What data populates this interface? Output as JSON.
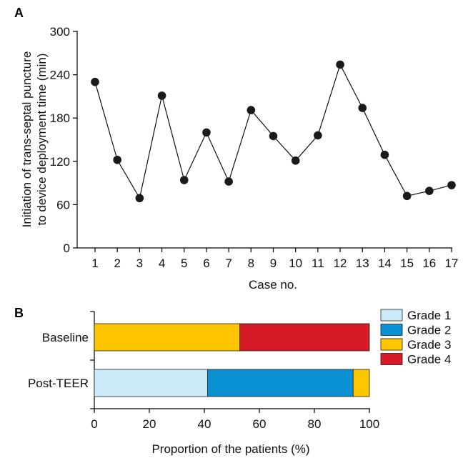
{
  "chart_data": [
    {
      "panel": "A",
      "type": "line",
      "xlabel": "Case no.",
      "ylabel_lines": [
        "Initiation of trans-septal puncture",
        "to device deployment time (min)"
      ],
      "ylim": [
        0,
        300
      ],
      "yticks": [
        0,
        60,
        120,
        180,
        240,
        300
      ],
      "x": [
        1,
        2,
        3,
        4,
        5,
        6,
        7,
        8,
        9,
        10,
        11,
        12,
        13,
        14,
        15,
        16,
        17
      ],
      "series": [
        {
          "values": [
            230,
            122,
            69,
            211,
            94,
            160,
            92,
            191,
            155,
            121,
            156,
            254,
            194,
            129,
            72,
            79,
            87
          ]
        }
      ],
      "grid": false
    },
    {
      "panel": "B",
      "type": "bar",
      "orientation": "horizontal",
      "stacked": true,
      "xlabel": "Proportion of the patients (%)",
      "xlim": [
        0,
        100
      ],
      "xticks": [
        0,
        20,
        40,
        60,
        80,
        100
      ],
      "categories": [
        "Baseline",
        "Post-TEER"
      ],
      "series": [
        {
          "name": "Grade 1",
          "color": "#cce9f7",
          "values": [
            0,
            41.2
          ]
        },
        {
          "name": "Grade 2",
          "color": "#0a91d4",
          "values": [
            0,
            52.9
          ]
        },
        {
          "name": "Grade 3",
          "color": "#fdc600",
          "values": [
            52.9,
            5.9
          ]
        },
        {
          "name": "Grade 4",
          "color": "#d61a27",
          "values": [
            47.1,
            0
          ]
        }
      ],
      "legend_position": "right"
    }
  ]
}
